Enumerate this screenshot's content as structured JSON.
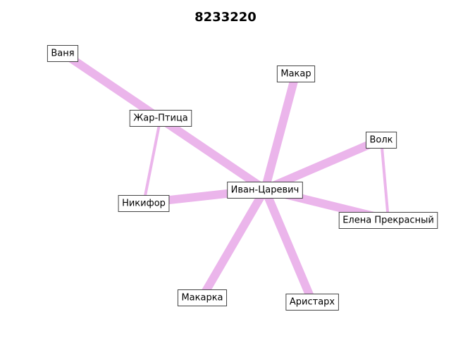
{
  "title": "8233220",
  "colors": {
    "edge": "#ebb5eb",
    "node_border": "#444444",
    "node_fill": "#ffffff",
    "text": "#000000",
    "background": "#ffffff"
  },
  "nodes": [
    {
      "id": "vanya",
      "label": "Ваня"
    },
    {
      "id": "makar",
      "label": "Макар"
    },
    {
      "id": "zhar_ptitsa",
      "label": "Жар-Птица"
    },
    {
      "id": "volk",
      "label": "Волк"
    },
    {
      "id": "ivan_tsarevich",
      "label": "Иван-Царевич"
    },
    {
      "id": "nikifor",
      "label": "Никифор"
    },
    {
      "id": "elena",
      "label": "Елена Прекрасный"
    },
    {
      "id": "makarka",
      "label": "Макарка"
    },
    {
      "id": "aristarkh",
      "label": "Аристарх"
    }
  ],
  "edges": [
    {
      "source": "ivan_tsarevich",
      "target": "vanya",
      "weight": 3
    },
    {
      "source": "ivan_tsarevich",
      "target": "makar",
      "weight": 3
    },
    {
      "source": "ivan_tsarevich",
      "target": "volk",
      "weight": 3
    },
    {
      "source": "ivan_tsarevich",
      "target": "nikifor",
      "weight": 3
    },
    {
      "source": "ivan_tsarevich",
      "target": "elena",
      "weight": 3
    },
    {
      "source": "ivan_tsarevich",
      "target": "makarka",
      "weight": 3
    },
    {
      "source": "ivan_tsarevich",
      "target": "aristarkh",
      "weight": 3
    },
    {
      "source": "zhar_ptitsa",
      "target": "nikifor",
      "weight": 1
    },
    {
      "source": "volk",
      "target": "elena",
      "weight": 1
    }
  ]
}
